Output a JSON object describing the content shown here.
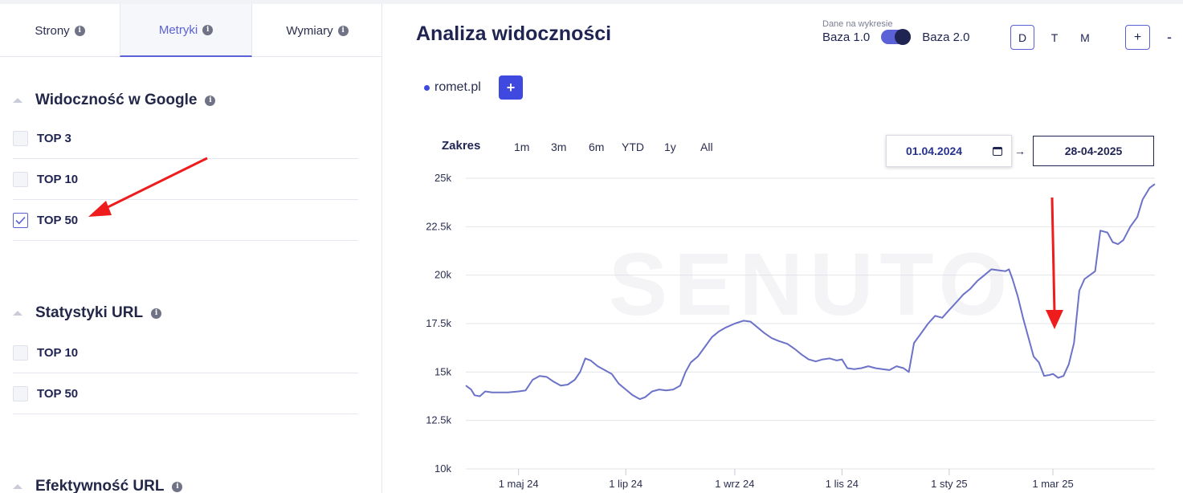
{
  "sidebar": {
    "tabs": [
      {
        "label": "Strony",
        "active": false
      },
      {
        "label": "Metryki",
        "active": true
      },
      {
        "label": "Wymiary",
        "active": false
      }
    ],
    "sections": [
      {
        "title": "Widoczność w Google",
        "items": [
          {
            "label": "TOP 3",
            "checked": false
          },
          {
            "label": "TOP 10",
            "checked": false
          },
          {
            "label": "TOP 50",
            "checked": true
          }
        ]
      },
      {
        "title": "Statystyki URL",
        "items": [
          {
            "label": "TOP 10",
            "checked": false
          },
          {
            "label": "TOP 50",
            "checked": false
          }
        ]
      },
      {
        "title": "Efektywność URL",
        "items": []
      }
    ]
  },
  "header": {
    "title": "Analiza widoczności",
    "data_toggle": {
      "caption": "Dane na wykresie",
      "left_label": "Baza 1.0",
      "right_label": "Baza 2.0",
      "state": "Baza 2.0"
    },
    "periods": [
      "D",
      "T",
      "M"
    ],
    "active_period": "D",
    "add_label": "+",
    "remove_label": "-"
  },
  "domains": [
    {
      "name": "romet.pl",
      "color": "#3f49e0"
    }
  ],
  "add_domain_label": "+",
  "range": {
    "label": "Zakres",
    "options": [
      "1m",
      "3m",
      "6m",
      "YTD",
      "1y",
      "All"
    ],
    "start": "01.04.2024",
    "end": "28-04-2025",
    "separator": "→"
  },
  "colors": {
    "accent": "#5b61d6",
    "line": "#6b72c8",
    "annotation_arrow": "#ee1c1c"
  },
  "chart_data": {
    "type": "line",
    "ylim": [
      10000,
      25000
    ],
    "yticks": [
      {
        "value": 10000,
        "label": "10k"
      },
      {
        "value": 12500,
        "label": "12.5k"
      },
      {
        "value": 15000,
        "label": "15k"
      },
      {
        "value": 17500,
        "label": "17.5k"
      },
      {
        "value": 20000,
        "label": "20k"
      },
      {
        "value": 22500,
        "label": "22.5k"
      },
      {
        "value": 25000,
        "label": "25k"
      }
    ],
    "xlim": [
      "2024-04-01",
      "2025-04-28"
    ],
    "xticks": [
      {
        "date": "2024-05-01",
        "label": "1 maj 24"
      },
      {
        "date": "2024-07-01",
        "label": "1 lip 24"
      },
      {
        "date": "2024-09-01",
        "label": "1 wrz 24"
      },
      {
        "date": "2024-11-01",
        "label": "1 lis 24"
      },
      {
        "date": "2025-01-01",
        "label": "1 sty 25"
      },
      {
        "date": "2025-03-01",
        "label": "1 mar 25"
      }
    ],
    "grid": true,
    "watermark": "SENUTO",
    "series": [
      {
        "name": "romet.pl",
        "points": [
          [
            "2024-04-01",
            14300
          ],
          [
            "2024-04-04",
            14100
          ],
          [
            "2024-04-06",
            13800
          ],
          [
            "2024-04-09",
            13750
          ],
          [
            "2024-04-12",
            14000
          ],
          [
            "2024-04-16",
            13950
          ],
          [
            "2024-04-20",
            13950
          ],
          [
            "2024-04-25",
            13950
          ],
          [
            "2024-05-01",
            14000
          ],
          [
            "2024-05-05",
            14050
          ],
          [
            "2024-05-09",
            14600
          ],
          [
            "2024-05-13",
            14800
          ],
          [
            "2024-05-17",
            14750
          ],
          [
            "2024-05-21",
            14500
          ],
          [
            "2024-05-25",
            14300
          ],
          [
            "2024-05-29",
            14350
          ],
          [
            "2024-06-02",
            14600
          ],
          [
            "2024-06-05",
            15000
          ],
          [
            "2024-06-08",
            15700
          ],
          [
            "2024-06-11",
            15600
          ],
          [
            "2024-06-15",
            15300
          ],
          [
            "2024-06-19",
            15100
          ],
          [
            "2024-06-23",
            14900
          ],
          [
            "2024-06-27",
            14400
          ],
          [
            "2024-07-01",
            14100
          ],
          [
            "2024-07-05",
            13800
          ],
          [
            "2024-07-09",
            13600
          ],
          [
            "2024-07-12",
            13700
          ],
          [
            "2024-07-16",
            14000
          ],
          [
            "2024-07-20",
            14100
          ],
          [
            "2024-07-24",
            14050
          ],
          [
            "2024-07-28",
            14100
          ],
          [
            "2024-08-01",
            14300
          ],
          [
            "2024-08-04",
            15000
          ],
          [
            "2024-08-07",
            15500
          ],
          [
            "2024-08-11",
            15800
          ],
          [
            "2024-08-15",
            16300
          ],
          [
            "2024-08-19",
            16800
          ],
          [
            "2024-08-23",
            17100
          ],
          [
            "2024-08-27",
            17300
          ],
          [
            "2024-09-01",
            17500
          ],
          [
            "2024-09-06",
            17650
          ],
          [
            "2024-09-10",
            17600
          ],
          [
            "2024-09-14",
            17300
          ],
          [
            "2024-09-18",
            17000
          ],
          [
            "2024-09-22",
            16750
          ],
          [
            "2024-09-26",
            16600
          ],
          [
            "2024-10-01",
            16450
          ],
          [
            "2024-10-05",
            16200
          ],
          [
            "2024-10-09",
            15900
          ],
          [
            "2024-10-13",
            15650
          ],
          [
            "2024-10-17",
            15550
          ],
          [
            "2024-10-21",
            15650
          ],
          [
            "2024-10-25",
            15700
          ],
          [
            "2024-10-29",
            15600
          ],
          [
            "2024-11-01",
            15650
          ],
          [
            "2024-11-04",
            15200
          ],
          [
            "2024-11-08",
            15150
          ],
          [
            "2024-11-12",
            15200
          ],
          [
            "2024-11-16",
            15300
          ],
          [
            "2024-11-20",
            15200
          ],
          [
            "2024-11-24",
            15150
          ],
          [
            "2024-11-28",
            15100
          ],
          [
            "2024-12-02",
            15300
          ],
          [
            "2024-12-06",
            15200
          ],
          [
            "2024-12-09",
            15000
          ],
          [
            "2024-12-12",
            16500
          ],
          [
            "2024-12-16",
            17000
          ],
          [
            "2024-12-20",
            17500
          ],
          [
            "2024-12-24",
            17900
          ],
          [
            "2024-12-28",
            17800
          ],
          [
            "2025-01-01",
            18200
          ],
          [
            "2025-01-05",
            18600
          ],
          [
            "2025-01-09",
            19000
          ],
          [
            "2025-01-13",
            19300
          ],
          [
            "2025-01-17",
            19700
          ],
          [
            "2025-01-21",
            20000
          ],
          [
            "2025-01-25",
            20300
          ],
          [
            "2025-01-29",
            20250
          ],
          [
            "2025-02-02",
            20200
          ],
          [
            "2025-02-04",
            20300
          ],
          [
            "2025-02-06",
            19800
          ],
          [
            "2025-02-09",
            18900
          ],
          [
            "2025-02-12",
            17800
          ],
          [
            "2025-02-15",
            16800
          ],
          [
            "2025-02-18",
            15800
          ],
          [
            "2025-02-21",
            15500
          ],
          [
            "2025-02-24",
            14800
          ],
          [
            "2025-02-27",
            14850
          ],
          [
            "2025-03-01",
            14900
          ],
          [
            "2025-03-04",
            14700
          ],
          [
            "2025-03-07",
            14800
          ],
          [
            "2025-03-10",
            15400
          ],
          [
            "2025-03-13",
            16500
          ],
          [
            "2025-03-16",
            19200
          ],
          [
            "2025-03-19",
            19800
          ],
          [
            "2025-03-22",
            20000
          ],
          [
            "2025-03-25",
            20200
          ],
          [
            "2025-03-28",
            22300
          ],
          [
            "2025-04-01",
            22200
          ],
          [
            "2025-04-04",
            21700
          ],
          [
            "2025-04-07",
            21600
          ],
          [
            "2025-04-10",
            21800
          ],
          [
            "2025-04-14",
            22500
          ],
          [
            "2025-04-18",
            23000
          ],
          [
            "2025-04-21",
            23900
          ],
          [
            "2025-04-25",
            24500
          ],
          [
            "2025-04-28",
            24700
          ]
        ]
      }
    ]
  }
}
